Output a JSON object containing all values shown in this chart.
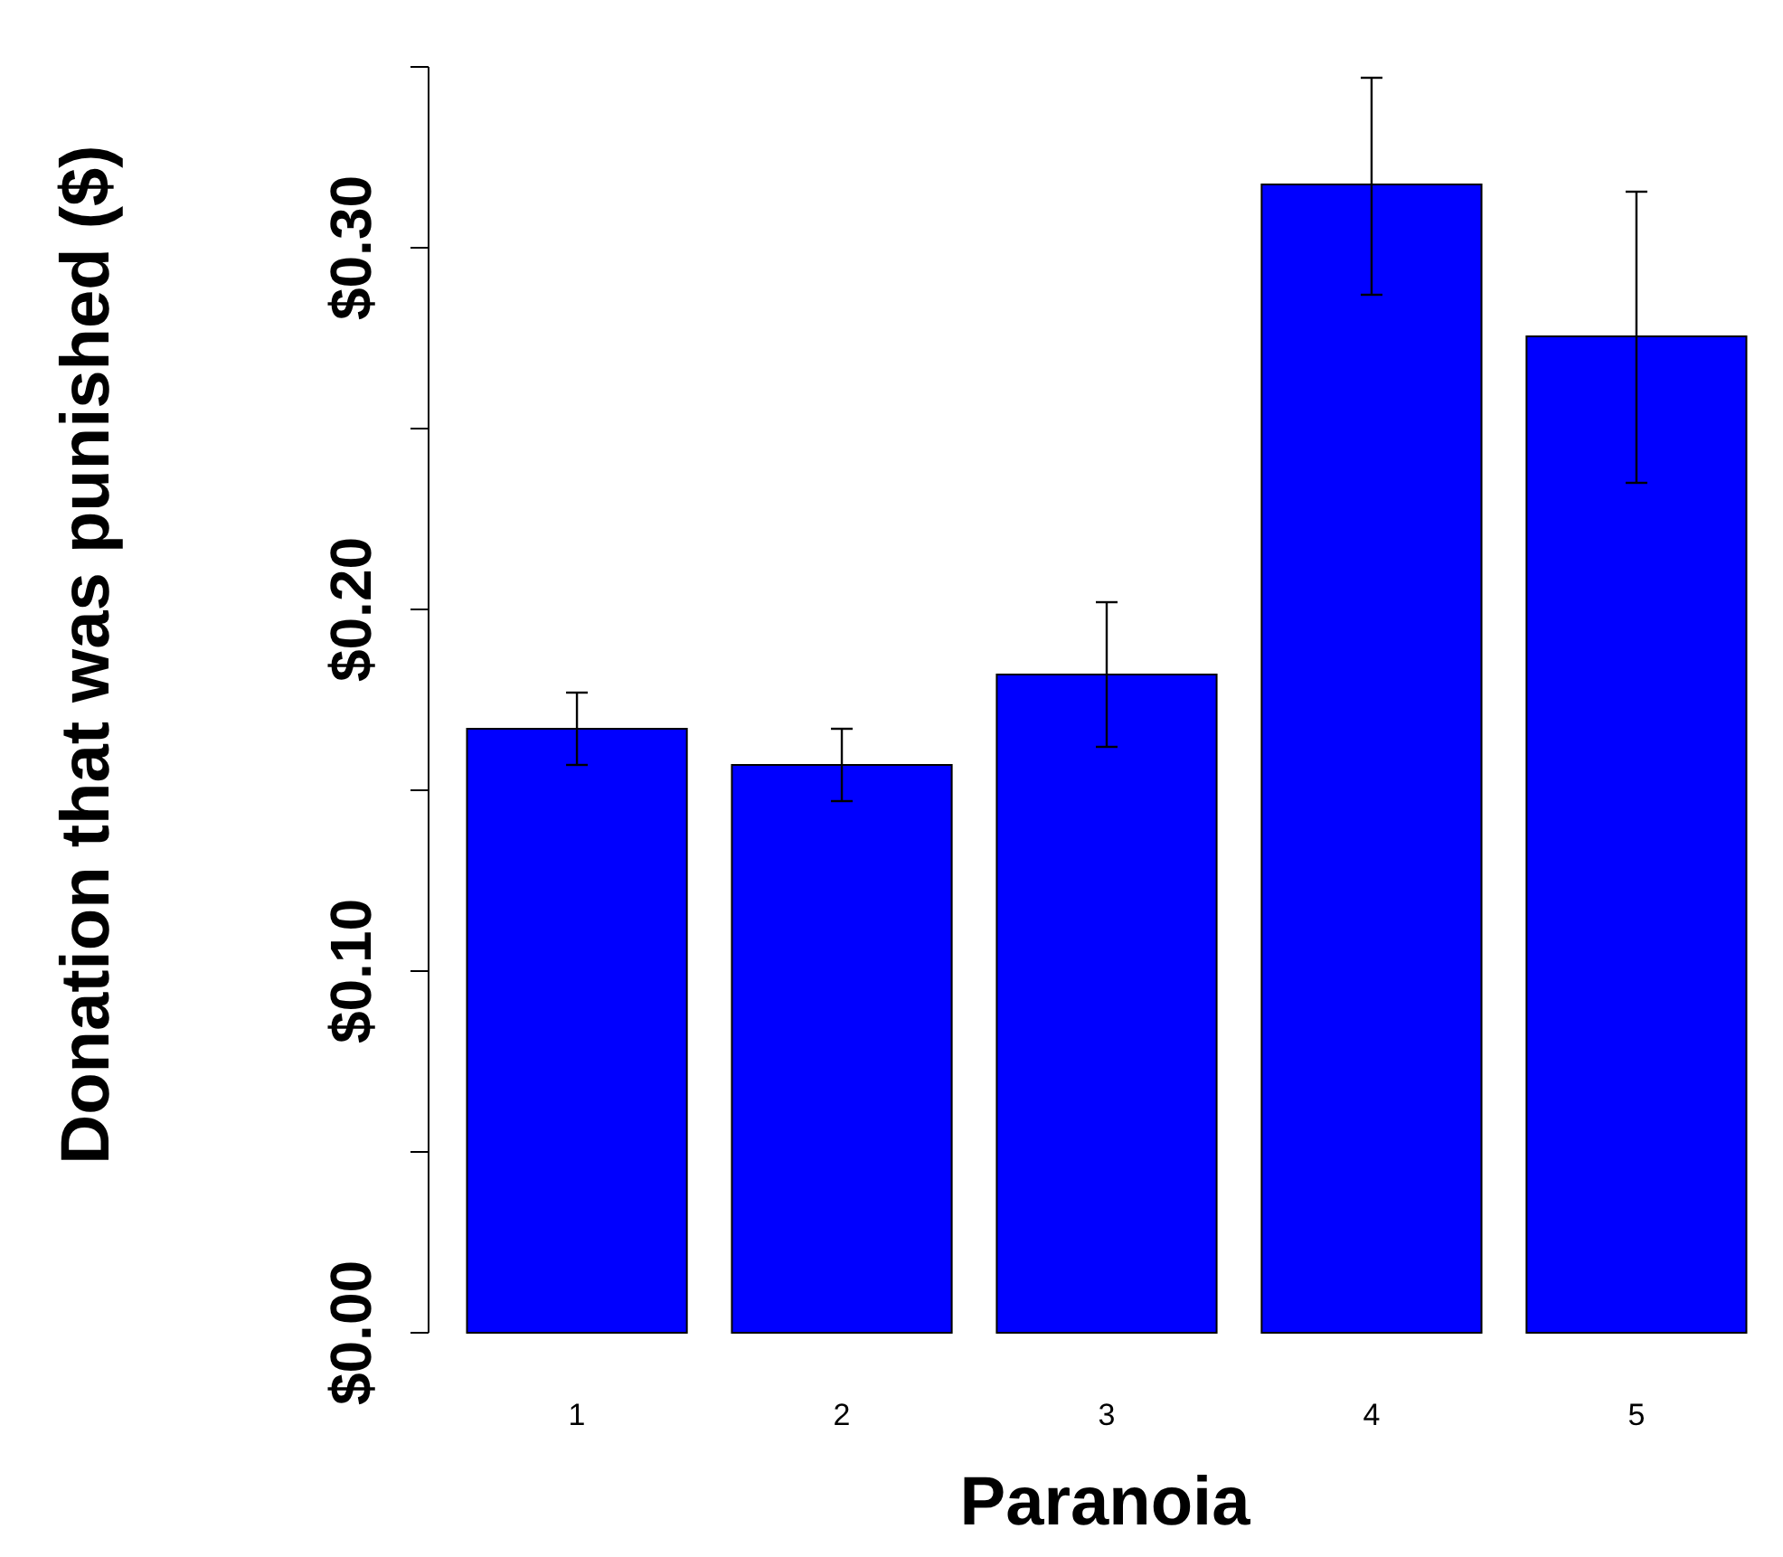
{
  "chart_data": {
    "type": "bar",
    "xlabel": "Paranoia",
    "ylabel": "Donation that was punished ($)",
    "categories": [
      "1",
      "2",
      "3",
      "4",
      "5"
    ],
    "values": [
      0.167,
      0.157,
      0.182,
      0.3175,
      0.2755
    ],
    "errors": [
      [
        0.157,
        0.177
      ],
      [
        0.147,
        0.167
      ],
      [
        0.162,
        0.202
      ],
      [
        0.287,
        0.347
      ],
      [
        0.235,
        0.3155
      ]
    ],
    "color": "#0000ff",
    "ylim": [
      0,
      0.35
    ],
    "yticks": [
      {
        "value": 0,
        "label": "$0.00"
      },
      {
        "value": 0.05,
        "label": null
      },
      {
        "value": 0.1,
        "label": "$0.10"
      },
      {
        "value": 0.15,
        "label": null
      },
      {
        "value": 0.2,
        "label": "$0.20"
      },
      {
        "value": 0.25,
        "label": null
      },
      {
        "value": 0.3,
        "label": "$0.30"
      },
      {
        "value": 0.35,
        "label": null
      }
    ],
    "grid": false
  }
}
